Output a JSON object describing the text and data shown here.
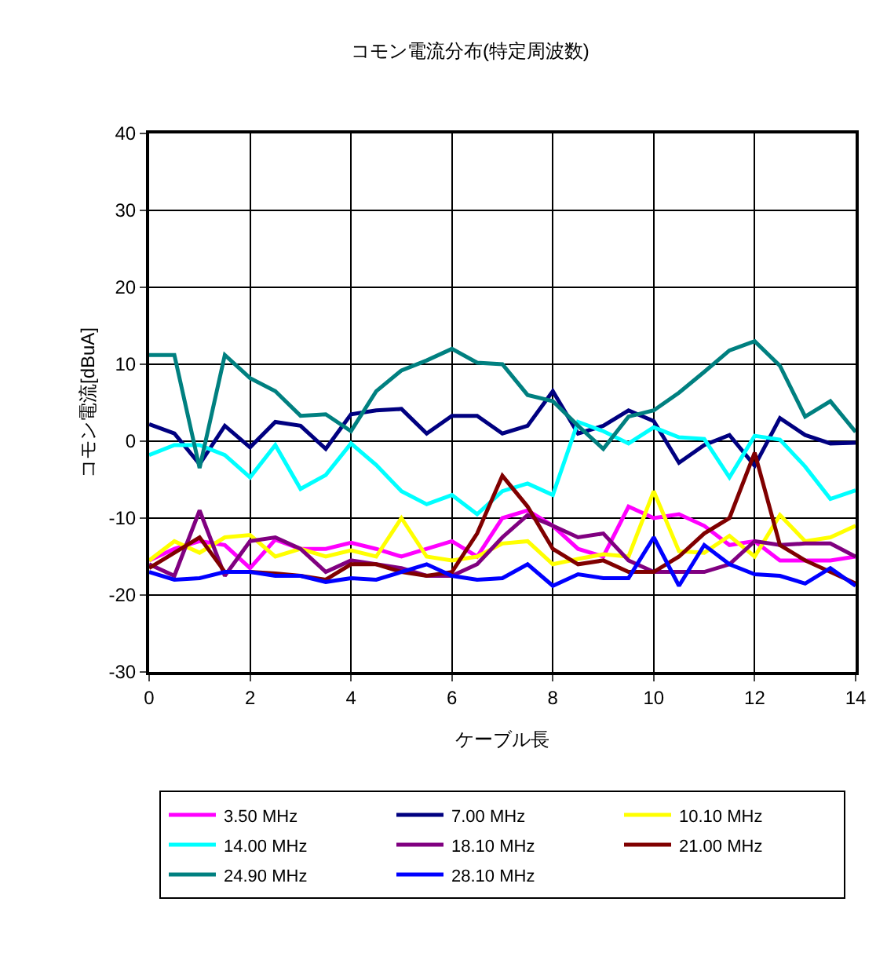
{
  "chart_data": {
    "type": "line",
    "title": "コモン電流分布(特定周波数)",
    "xlabel": "ケーブル長",
    "ylabel": "コモン電流[dBuA]",
    "x": [
      0,
      0.5,
      1,
      1.5,
      2,
      2.5,
      3,
      3.5,
      4,
      4.5,
      5,
      5.5,
      6,
      6.5,
      7,
      7.5,
      8,
      8.5,
      9,
      9.5,
      10,
      10.5,
      11,
      11.5,
      12,
      12.5,
      13,
      13.5,
      14
    ],
    "xlim": [
      0,
      14
    ],
    "xticks": [
      0,
      2,
      4,
      6,
      8,
      10,
      12,
      14
    ],
    "ylim": [
      -30,
      40
    ],
    "yticks": [
      -30,
      -20,
      -10,
      0,
      10,
      20,
      30,
      40
    ],
    "grid": true,
    "legend": "bottom",
    "marker": "none",
    "line_style": "solid",
    "series": [
      {
        "name": "3.50 MHz",
        "color": "#ff00ff",
        "values": [
          -15.5,
          -14,
          -13,
          -13.5,
          -16.5,
          -12.8,
          -14,
          -14,
          -13.2,
          -14,
          -15,
          -14,
          -13,
          -15,
          -10,
          -9,
          -11,
          -14,
          -15,
          -8.5,
          -10,
          -9.5,
          -11,
          -13.5,
          -13,
          -15.5,
          -15.5,
          -15.5,
          -15
        ]
      },
      {
        "name": "7.00 MHz",
        "color": "#000080",
        "values": [
          2.2,
          1,
          -3,
          2,
          -0.8,
          2.5,
          2,
          -1,
          3.5,
          4,
          4.2,
          1,
          3.3,
          3.3,
          1,
          2,
          6.5,
          1,
          2,
          4,
          2.6,
          -2.8,
          -0.5,
          0.8,
          -3.2,
          3,
          0.8,
          -0.3,
          -0.2
        ]
      },
      {
        "name": "10.10 MHz",
        "color": "#ffff00",
        "values": [
          -15.5,
          -13,
          -14.5,
          -12.5,
          -12.2,
          -15,
          -14,
          -15,
          -14.2,
          -15,
          -10,
          -15,
          -15.5,
          -15,
          -13.3,
          -13,
          -16,
          -15.3,
          -14.7,
          -15,
          -6.5,
          -14.3,
          -14.5,
          -12.3,
          -15,
          -9.6,
          -13,
          -12.5,
          -11
        ]
      },
      {
        "name": "14.00 MHz",
        "color": "#00ffff",
        "values": [
          -1.8,
          -0.5,
          -0.5,
          -1.8,
          -4.7,
          -0.5,
          -6.2,
          -4.4,
          -0.3,
          -3.1,
          -6.5,
          -8.2,
          -7,
          -9.5,
          -6.5,
          -5.5,
          -7,
          2.5,
          1.3,
          -0.3,
          1.8,
          0.5,
          0.3,
          -4.7,
          0.7,
          0.2,
          -3.3,
          -7.5,
          -6.4
        ]
      },
      {
        "name": "18.10 MHz",
        "color": "#800080",
        "values": [
          -16,
          -17.5,
          -9,
          -17.5,
          -13,
          -12.5,
          -14,
          -17,
          -15.5,
          -16,
          -16.5,
          -17.5,
          -17.5,
          -16,
          -12.5,
          -9.6,
          -11,
          -12.5,
          -12,
          -15.5,
          -17,
          -17,
          -17,
          -16,
          -13,
          -13.5,
          -13.3,
          -13.3,
          -15
        ]
      },
      {
        "name": "21.00 MHz",
        "color": "#800000",
        "values": [
          -16.5,
          -14.5,
          -12.5,
          -17,
          -17,
          -17.2,
          -17.5,
          -18,
          -16,
          -16,
          -17,
          -17.5,
          -17,
          -12,
          -4.5,
          -8.5,
          -14,
          -16,
          -15.5,
          -17,
          -17,
          -15,
          -12,
          -10,
          -1.5,
          -13.5,
          -15.5,
          -17,
          -18.5
        ]
      },
      {
        "name": "24.90 MHz",
        "color": "#008080",
        "values": [
          11.2,
          11.2,
          -3.5,
          11.2,
          8.2,
          6.5,
          3.3,
          3.5,
          1.3,
          6.5,
          9.2,
          10.5,
          12,
          10.2,
          10,
          6,
          5.2,
          2,
          -1,
          3.2,
          4,
          6.3,
          9,
          11.8,
          13,
          9.8,
          3.2,
          5.2,
          1.2
        ]
      },
      {
        "name": "28.10 MHz",
        "color": "#0000ff",
        "values": [
          -17,
          -18,
          -17.8,
          -17,
          -17,
          -17.5,
          -17.5,
          -18.3,
          -17.8,
          -18,
          -17,
          -16,
          -17.5,
          -18,
          -17.8,
          -16,
          -18.8,
          -17.3,
          -17.8,
          -17.8,
          -12.5,
          -18.8,
          -13.5,
          -16,
          -17.3,
          -17.5,
          -18.5,
          -16.5,
          -18.8
        ]
      }
    ]
  }
}
